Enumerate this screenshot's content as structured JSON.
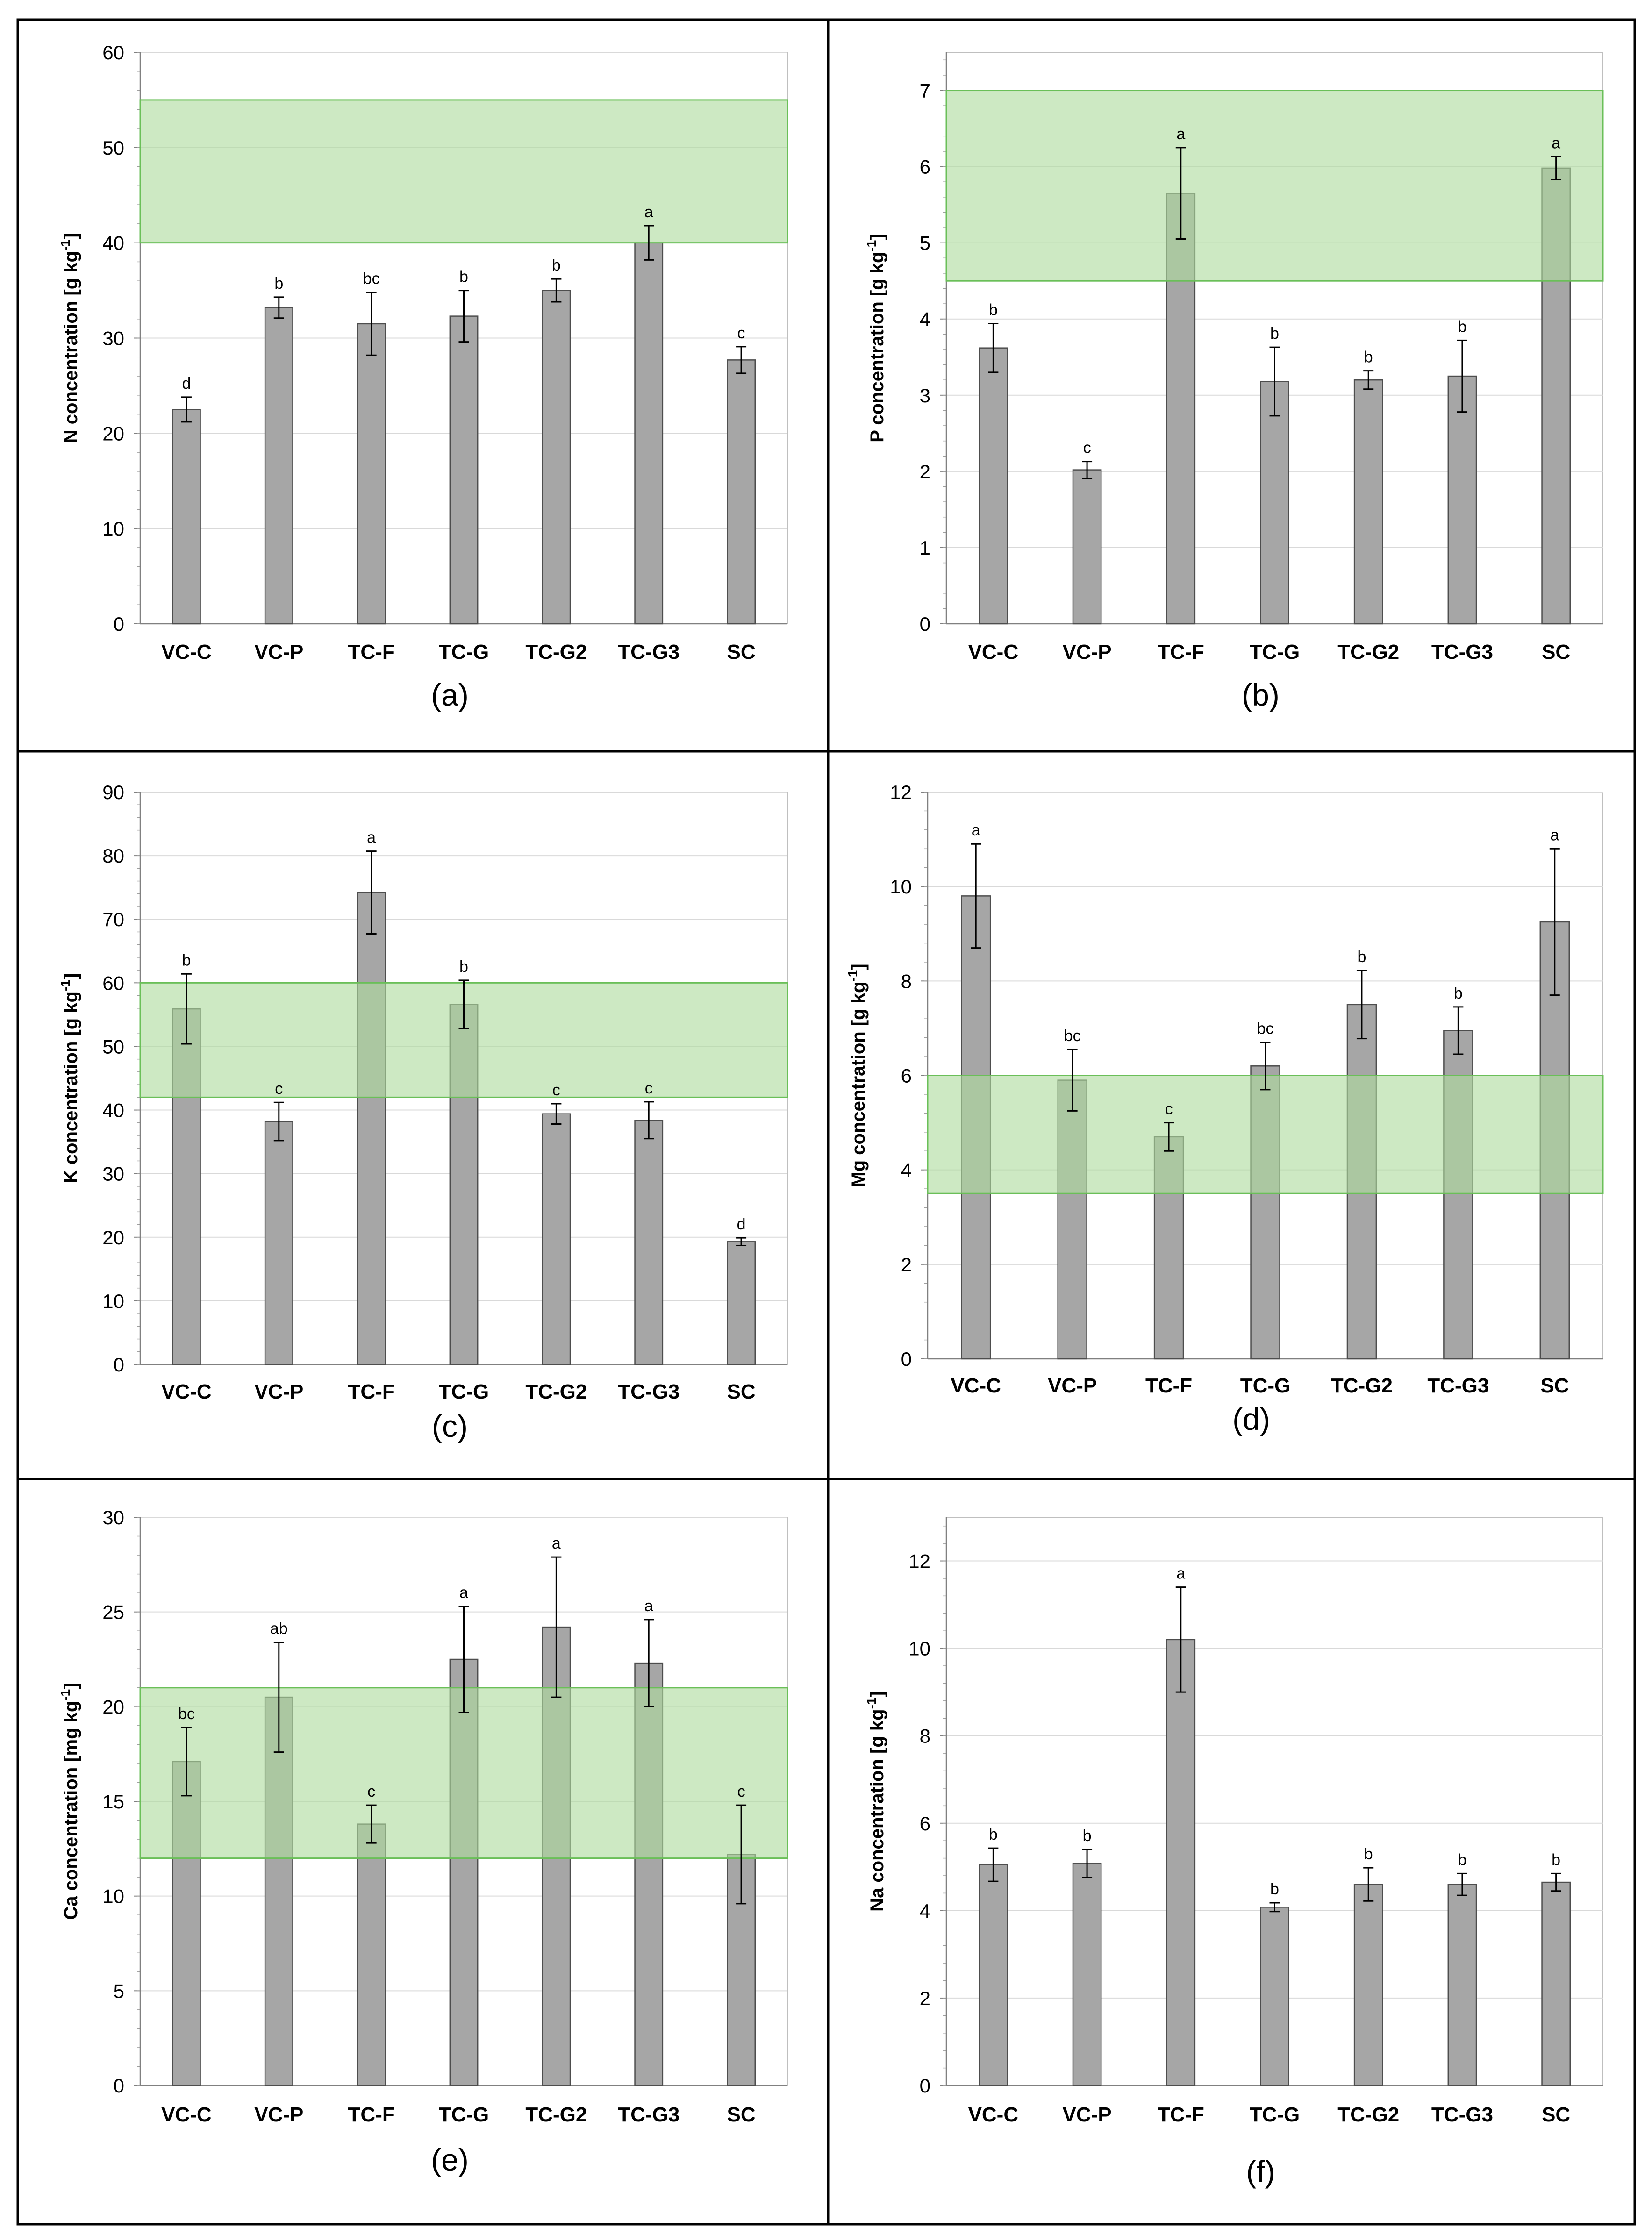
{
  "figure": {
    "colors": {
      "bar": "#a6a6a6",
      "bar_edge": "#4d4d4d",
      "band_fill": "#aedc9e",
      "band_edge": "#6abf58",
      "grid": "#d9d9d9",
      "frame": "#000000",
      "text": "#000000"
    }
  },
  "chart_data": [
    {
      "panel": "(a)",
      "type": "bar",
      "ylabel_main": "N concentration [g kg",
      "ylabel_exp": "-1",
      "ylabel_end": "]",
      "categories": [
        "VC-C",
        "VC-P",
        "TC-F",
        "TC-G",
        "TC-G2",
        "TC-G3",
        "SC"
      ],
      "values": [
        22.5,
        33.2,
        31.5,
        32.3,
        35.0,
        40.0,
        27.7
      ],
      "errors": [
        1.3,
        1.1,
        3.3,
        2.7,
        1.2,
        1.8,
        1.4
      ],
      "letters": [
        "d",
        "b",
        "bc",
        "b",
        "b",
        "a",
        "c"
      ],
      "ylim": [
        0,
        60
      ],
      "yticks": [
        0,
        10,
        20,
        30,
        40,
        50,
        60
      ],
      "band": [
        40,
        55
      ]
    },
    {
      "panel": "(b)",
      "type": "bar",
      "ylabel_main": "P concentration [g kg",
      "ylabel_exp": "-1",
      "ylabel_end": "]",
      "categories": [
        "VC-C",
        "VC-P",
        "TC-F",
        "TC-G",
        "TC-G2",
        "TC-G3",
        "SC"
      ],
      "values": [
        3.62,
        2.02,
        5.65,
        3.18,
        3.2,
        3.25,
        5.98
      ],
      "errors": [
        0.32,
        0.11,
        0.6,
        0.45,
        0.12,
        0.47,
        0.15
      ],
      "letters": [
        "b",
        "c",
        "a",
        "b",
        "b",
        "b",
        "a"
      ],
      "ylim": [
        0,
        7.5
      ],
      "yticks": [
        0,
        1,
        2,
        3,
        4,
        5,
        6,
        7
      ],
      "band": [
        4.5,
        7
      ]
    },
    {
      "panel": "(c)",
      "type": "bar",
      "ylabel_main": "K concentration [g kg",
      "ylabel_exp": "-1",
      "ylabel_end": "]",
      "categories": [
        "VC-C",
        "VC-P",
        "TC-F",
        "TC-G",
        "TC-G2",
        "TC-G3",
        "SC"
      ],
      "values": [
        55.9,
        38.2,
        74.2,
        56.6,
        39.4,
        38.4,
        19.3
      ],
      "errors": [
        5.5,
        3.0,
        6.5,
        3.8,
        1.6,
        2.9,
        0.6
      ],
      "letters": [
        "b",
        "c",
        "a",
        "b",
        "c",
        "c",
        "d"
      ],
      "ylim": [
        0,
        90
      ],
      "yticks": [
        0,
        10,
        20,
        30,
        40,
        50,
        60,
        70,
        80,
        90
      ],
      "band": [
        42,
        60
      ]
    },
    {
      "panel": "(d)",
      "type": "bar",
      "ylabel_main": "Mg concentration [g kg",
      "ylabel_exp": "-1",
      "ylabel_end": "]",
      "categories": [
        "VC-C",
        "VC-P",
        "TC-F",
        "TC-G",
        "TC-G2",
        "TC-G3",
        "SC"
      ],
      "values": [
        9.8,
        5.9,
        4.7,
        6.2,
        7.5,
        6.95,
        9.25
      ],
      "errors": [
        1.1,
        0.65,
        0.3,
        0.5,
        0.72,
        0.5,
        1.55
      ],
      "letters": [
        "a",
        "bc",
        "c",
        "bc",
        "b",
        "b",
        "a"
      ],
      "ylim": [
        0,
        12
      ],
      "yticks": [
        0,
        2,
        4,
        6,
        8,
        10,
        12
      ],
      "band": [
        3.5,
        6
      ]
    },
    {
      "panel": "(e)",
      "type": "bar",
      "ylabel_main": "Ca concentration [mg kg",
      "ylabel_exp": "-1",
      "ylabel_end": "]",
      "categories": [
        "VC-C",
        "VC-P",
        "TC-F",
        "TC-G",
        "TC-G2",
        "TC-G3",
        "SC"
      ],
      "values": [
        17.1,
        20.5,
        13.8,
        22.5,
        24.2,
        22.3,
        12.2
      ],
      "errors": [
        1.8,
        2.9,
        1.0,
        2.8,
        3.7,
        2.3,
        2.6
      ],
      "letters": [
        "bc",
        "ab",
        "c",
        "a",
        "a",
        "a",
        "c"
      ],
      "ylim": [
        0,
        30
      ],
      "yticks": [
        0,
        5,
        10,
        15,
        20,
        25,
        30
      ],
      "band": [
        12,
        21
      ]
    },
    {
      "panel": "(f)",
      "type": "bar",
      "ylabel_main": "Na concentration [g kg",
      "ylabel_exp": "-1",
      "ylabel_end": "]",
      "categories": [
        "VC-C",
        "VC-P",
        "TC-F",
        "TC-G",
        "TC-G2",
        "TC-G3",
        "SC"
      ],
      "values": [
        5.05,
        5.08,
        10.2,
        4.08,
        4.6,
        4.6,
        4.65
      ],
      "errors": [
        0.38,
        0.32,
        1.2,
        0.1,
        0.38,
        0.25,
        0.2
      ],
      "letters": [
        "b",
        "b",
        "a",
        "b",
        "b",
        "b",
        "b"
      ],
      "ylim": [
        0,
        13
      ],
      "yticks": [
        0,
        2,
        4,
        6,
        8,
        10,
        12
      ],
      "band": null
    }
  ]
}
